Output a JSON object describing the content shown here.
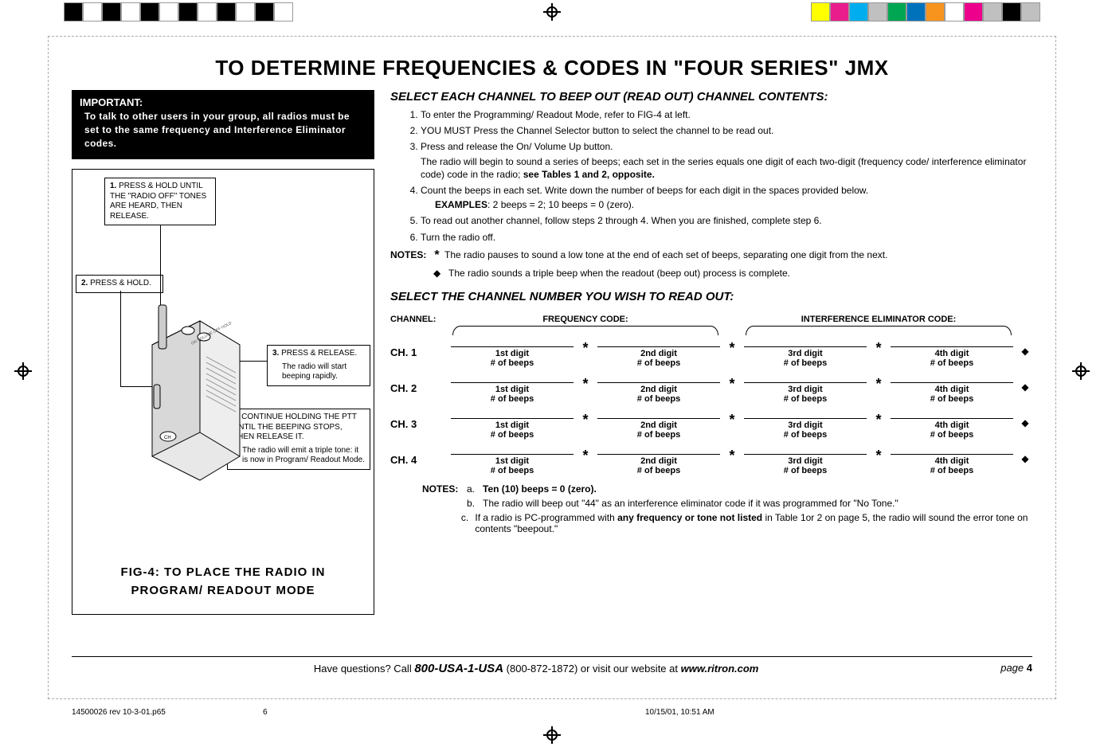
{
  "print_blocks_left": [
    "#000000",
    "#ffffff",
    "#000000",
    "#ffffff",
    "#000000",
    "#ffffff",
    "#000000",
    "#ffffff",
    "#000000",
    "#ffffff",
    "#000000",
    "#ffffff"
  ],
  "print_blocks_right": [
    "#ffff00",
    "#e91e8c",
    "#00aeef",
    "#c0c0c0",
    "#00a651",
    "#0072bc",
    "#f7941d",
    "#ffffff",
    "#ec008c",
    "#c0c0c0",
    "#000000",
    "#c0c0c0"
  ],
  "title": "TO DETERMINE FREQUENCIES & CODES IN \"FOUR SERIES\" JMX",
  "important": {
    "header": "IMPORTANT:",
    "body": "To talk to other users in your group, all radios must be set to the same frequency and Interference Eliminator codes."
  },
  "figure": {
    "callout1_num": "1.",
    "callout1": "PRESS & HOLD UNTIL THE \"RADIO OFF\" TONES ARE HEARD, THEN RELEASE.",
    "callout2_num": "2.",
    "callout2": "PRESS & HOLD.",
    "callout3_num": "3.",
    "callout3": "PRESS & RELEASE.",
    "callout3_sub": "The radio will start beeping rapidly.",
    "callout4_num": "4.",
    "callout4": "CONTINUE HOLDING THE PTT UNTIL THE BEEPING STOPS, THEN RELEASE IT.",
    "callout4_sub": "The radio will emit a triple tone: it is now in Program/ Readout Mode.",
    "caption_l1": "FIG-4:  TO PLACE THE RADIO IN",
    "caption_l2": "PROGRAM/ READOUT MODE"
  },
  "section1_hdr": "SELECT EACH CHANNEL TO BEEP OUT (READ OUT) CHANNEL CONTENTS:",
  "steps": [
    "To enter the Programming/ Readout Mode, refer to FIG-4 at left.",
    "YOU MUST Press the Channel Selector button to select the channel to be read out.",
    "Press and release the On/ Volume Up button."
  ],
  "step3_sub": "The radio will begin to sound a series of beeps; each set in the series equals one digit of each two-digit (frequency code/ interference eliminator code) code in the radio; ",
  "step3_bold": "see Tables 1 and 2, opposite.",
  "step4": "Count the beeps in each set. Write down the number of beeps for each digit in the spaces provided below.",
  "examples_lbl": "EXAMPLES",
  "examples_txt": ":   2 beeps  =  2;     10 beeps  =  0 (zero).",
  "step5": "To read out another channel, follow steps 2 through 4. When you are finished, complete step 6.",
  "step6": "Turn the radio off.",
  "notes_lbl": "NOTES:",
  "note_star": "The radio pauses to sound a low tone at the end of each set of beeps, separating one digit from the next.",
  "note_diamond": "The radio sounds a triple beep when the readout (beep out) process is complete.",
  "section2_hdr": "SELECT THE CHANNEL NUMBER YOU WISH TO READ OUT:",
  "col_ch": "CHANNEL:",
  "col_freq": "FREQUENCY CODE:",
  "col_ie": "INTERFERENCE ELIMINATOR CODE:",
  "channels": [
    "CH. 1",
    "CH. 2",
    "CH. 3",
    "CH. 4"
  ],
  "digits": [
    "1st digit",
    "2nd digit",
    "3rd digit",
    "4th digit"
  ],
  "beeps_lbl": "# of beeps",
  "bottom_notes_lbl": "NOTES:",
  "bn_a_bold": "Ten (10) beeps    =    0 (zero).",
  "bn_b": "The radio will beep out \"44\" as an interference eliminator code if it was programmed for \"No Tone.\"",
  "bn_c_pre": "If a radio is PC-programmed with ",
  "bn_c_bold": "any frequency or tone not listed",
  "bn_c_post": " in Table 1or 2 on page 5, the radio will sound the error tone on contents \"beepout.\"",
  "footer_q": "Have questions?  Call  ",
  "footer_phone": "800-USA-1-USA",
  "footer_phone2": "  (800-872-1872) or visit our website at ",
  "footer_url": "www.ritron.com",
  "footer_page_lbl": "page",
  "footer_page_n": "4",
  "slug_file": "14500026 rev 10-3-01.p65",
  "slug_page": "6",
  "slug_ts": "10/15/01, 10:51 AM"
}
